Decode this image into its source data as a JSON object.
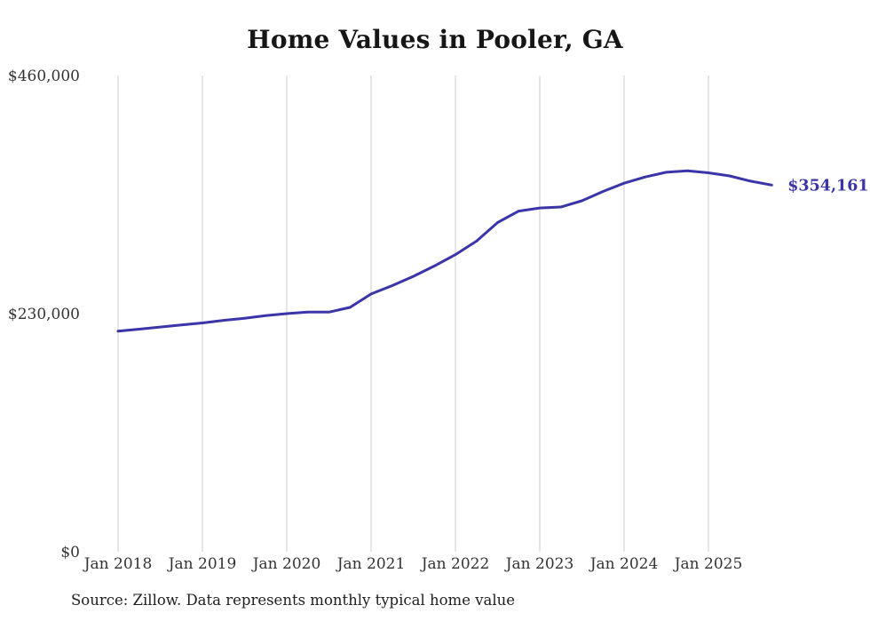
{
  "page": {
    "background": "#ffffff"
  },
  "chart": {
    "title": "Home Values in Pooler, GA",
    "source_note": "Source: Zillow. Data represents monthly typical home value",
    "latest_value_label": "$354,161"
  },
  "chart_data": {
    "type": "line",
    "title": "Home Values in Pooler, GA",
    "xlabel": "",
    "ylabel": "",
    "ylim": [
      0,
      460000
    ],
    "grid": "vertical-only",
    "legend": "none",
    "line_color": "#3a35a8",
    "gridline_color": "#cccccc",
    "axis_text_color": "#333333",
    "x_tick_labels": [
      "Jan 2018",
      "Jan 2019",
      "Jan 2020",
      "Jan 2021",
      "Jan 2022",
      "Jan 2023",
      "Jan 2024",
      "Jan 2025"
    ],
    "y_ticks": [
      {
        "label": "$460,000",
        "value": 460000
      },
      {
        "label": "$230,000",
        "value": 230000
      },
      {
        "label": "$0",
        "value": 0
      }
    ],
    "end_label": "$354,161",
    "series": [
      {
        "name": "Monthly typical home value",
        "months_since_jan_2018": [
          0,
          3,
          6,
          9,
          12,
          15,
          18,
          21,
          24,
          27,
          30,
          33,
          36,
          39,
          42,
          45,
          48,
          51,
          54,
          57,
          60,
          63,
          66,
          69,
          72,
          75,
          78,
          81,
          84,
          87,
          90,
          93
        ],
        "month_labels": [
          "Jan 2018",
          "Apr 2018",
          "Jul 2018",
          "Oct 2018",
          "Jan 2019",
          "Apr 2019",
          "Jul 2019",
          "Oct 2019",
          "Jan 2020",
          "Apr 2020",
          "Jul 2020",
          "Oct 2020",
          "Jan 2021",
          "Apr 2021",
          "Jul 2021",
          "Oct 2021",
          "Jan 2022",
          "Apr 2022",
          "Jul 2022",
          "Oct 2022",
          "Jan 2023",
          "Apr 2023",
          "Jul 2023",
          "Oct 2023",
          "Jan 2024",
          "Apr 2024",
          "Jul 2024",
          "Oct 2024",
          "Jan 2025",
          "Apr 2025",
          "Jul 2025",
          "Oct 2025"
        ],
        "values": [
          213000,
          215000,
          217000,
          219000,
          221000,
          223500,
          225500,
          228000,
          230000,
          231500,
          231500,
          236000,
          249000,
          257000,
          266000,
          276000,
          287000,
          300000,
          318000,
          329000,
          332000,
          333000,
          339000,
          348000,
          356000,
          362000,
          366500,
          368000,
          366000,
          363000,
          358000,
          354161
        ]
      }
    ]
  }
}
